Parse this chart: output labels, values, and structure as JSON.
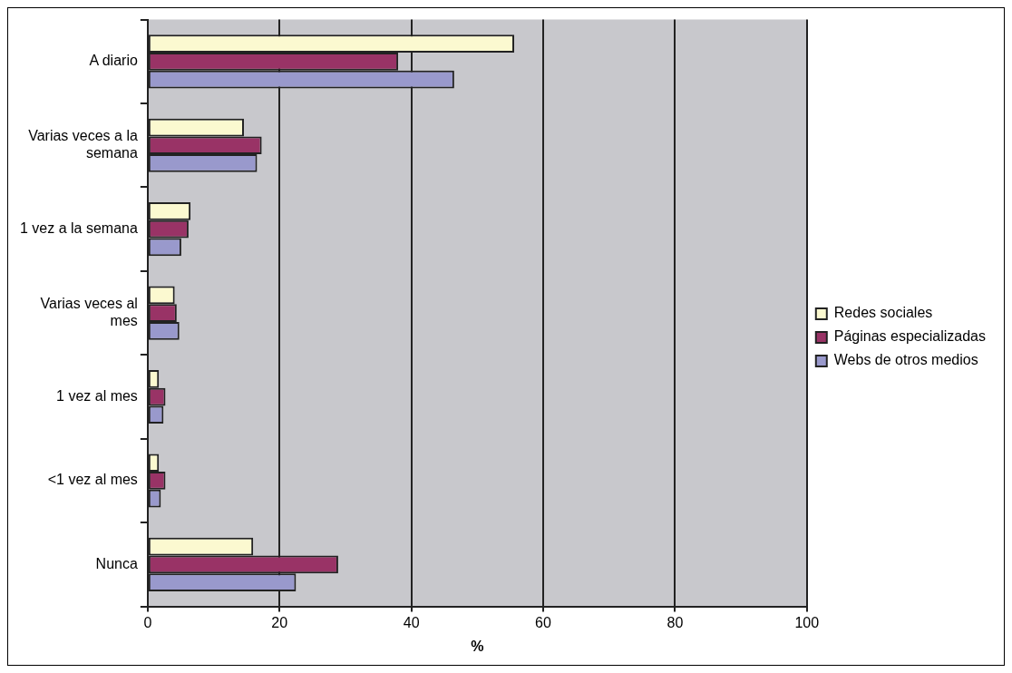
{
  "chart_data": {
    "type": "bar",
    "orientation": "horizontal",
    "xlabel": "%",
    "categories": [
      "A diario",
      "Varias veces a la semana",
      "1 vez a la semana",
      "Varias veces al mes",
      "1 vez al mes",
      "<1 vez al mes",
      "Nunca"
    ],
    "series": [
      {
        "name": "Redes sociales",
        "color": "#fbf9d0",
        "values": [
          55.6,
          14.6,
          6.5,
          4.1,
          1.7,
          1.7,
          16.0
        ]
      },
      {
        "name": "Páginas especializadas",
        "color": "#993366",
        "values": [
          38.0,
          17.3,
          6.2,
          4.4,
          2.7,
          2.7,
          28.9
        ]
      },
      {
        "name": "Webs de otros medios",
        "color": "#9999cc",
        "values": [
          46.5,
          16.6,
          5.1,
          4.8,
          2.4,
          2.0,
          22.5
        ]
      }
    ],
    "xlim": [
      0,
      100
    ],
    "xticks": [
      0,
      20,
      40,
      60,
      80,
      100
    ],
    "grid": "x",
    "legend": "right"
  }
}
